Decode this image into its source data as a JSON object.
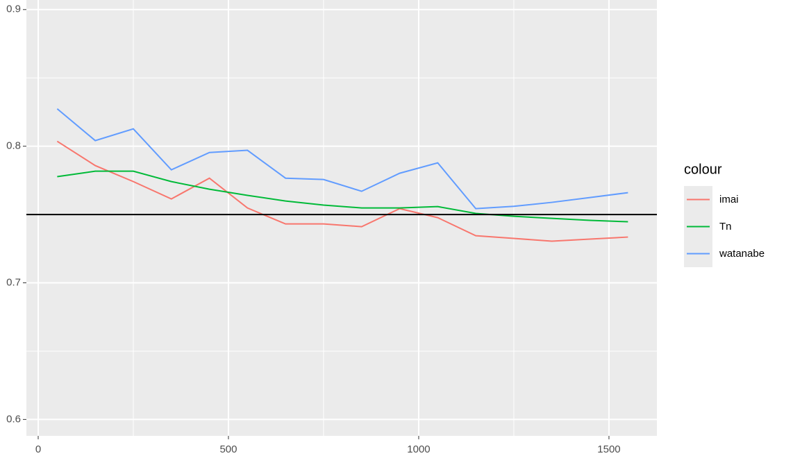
{
  "chart_data": {
    "type": "line",
    "x": [
      50,
      150,
      250,
      350,
      450,
      550,
      650,
      750,
      850,
      950,
      1050,
      1150,
      1250,
      1350,
      1450,
      1550
    ],
    "series": [
      {
        "name": "imai",
        "color": "#F8766D",
        "values": [
          0.8036,
          0.7858,
          0.7741,
          0.7614,
          0.7766,
          0.7548,
          0.7431,
          0.7431,
          0.7411,
          0.7543,
          0.7477,
          0.7345,
          0.7325,
          0.7305,
          0.732,
          0.7335
        ]
      },
      {
        "name": "Tn",
        "color": "#00BA38",
        "values": [
          0.7777,
          0.7817,
          0.7817,
          0.7741,
          0.7685,
          0.764,
          0.7599,
          0.7569,
          0.7548,
          0.7548,
          0.7558,
          0.7508,
          0.7487,
          0.7472,
          0.7457,
          0.7447
        ]
      },
      {
        "name": "watanabe",
        "color": "#619CFF",
        "values": [
          0.8274,
          0.8041,
          0.8127,
          0.7827,
          0.7954,
          0.797,
          0.7766,
          0.7756,
          0.767,
          0.7802,
          0.7878,
          0.7543,
          0.756,
          0.7589,
          0.7624,
          0.766
        ]
      }
    ],
    "hline": 0.75,
    "legend_title": "colour",
    "xlim": [
      -31,
      1626
    ],
    "xticks": [
      0,
      500,
      1000,
      1500
    ],
    "xminor": [
      250,
      750,
      1250
    ],
    "ylim": [
      0.588,
      0.907
    ],
    "yticks": [
      0.6,
      0.7,
      0.8,
      0.9
    ],
    "yminor": [
      0.65,
      0.75,
      0.85
    ],
    "grid": true,
    "legend": "right"
  }
}
